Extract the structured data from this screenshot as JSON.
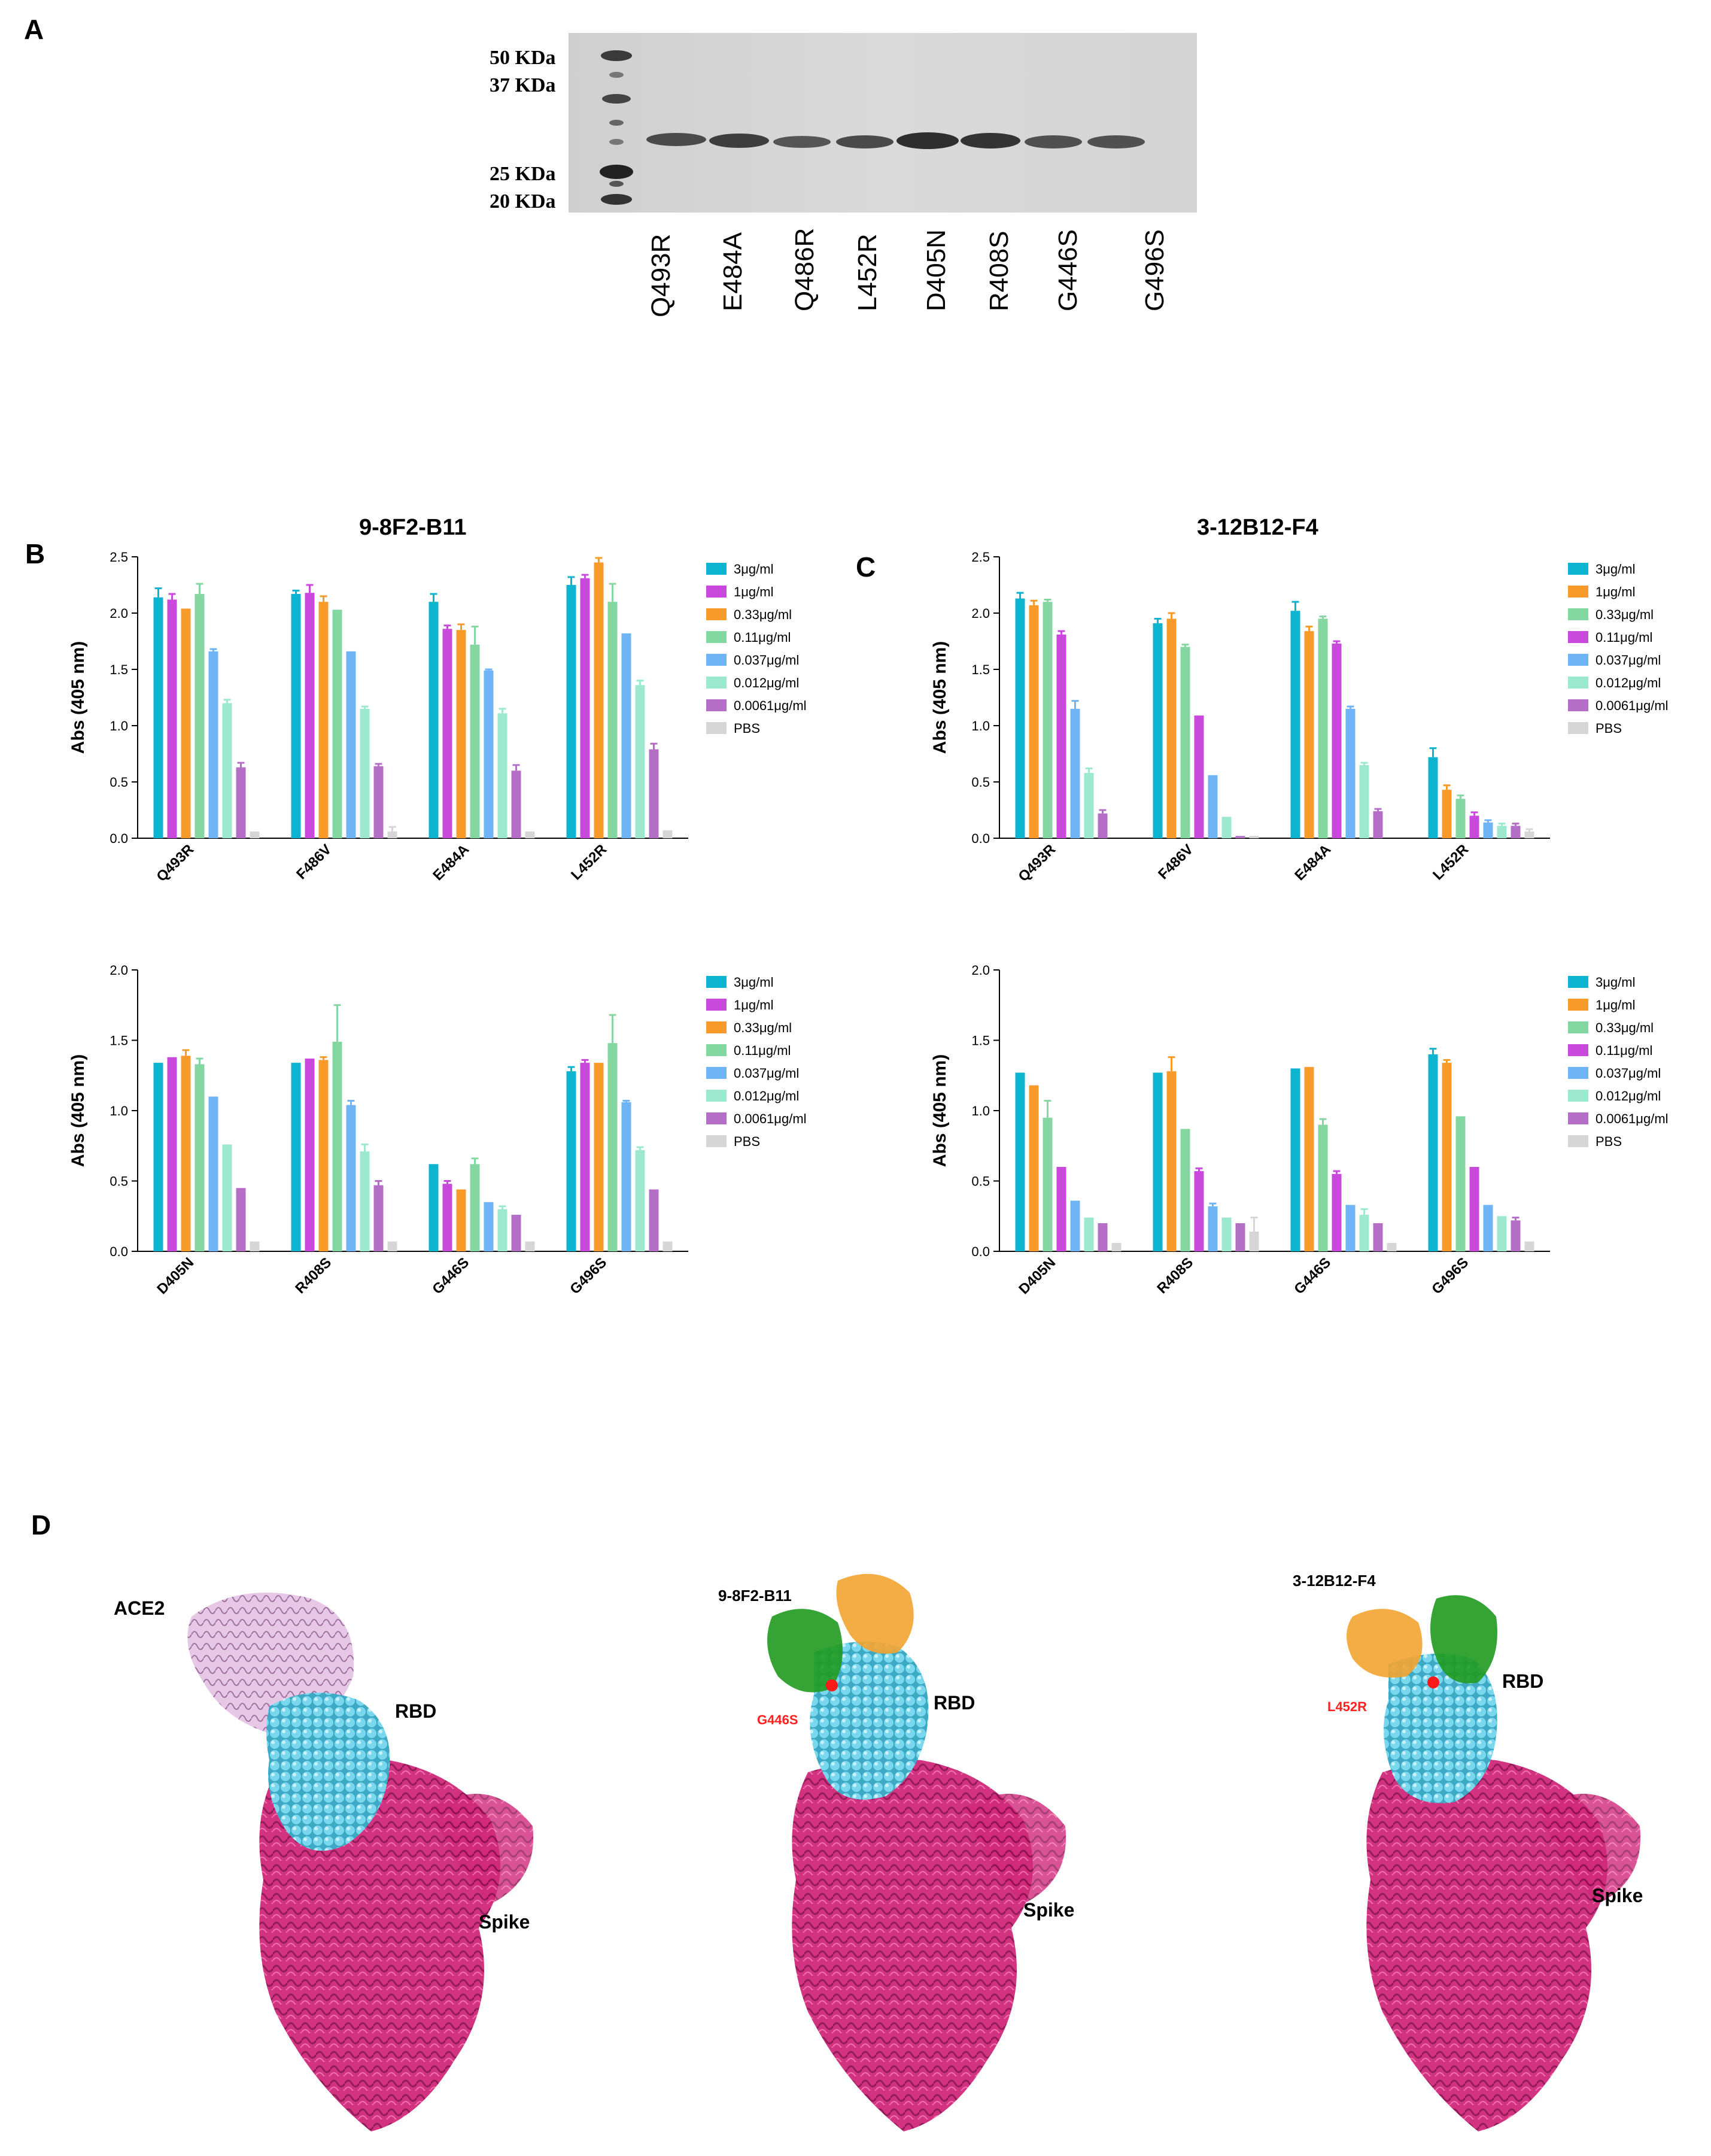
{
  "panels": {
    "A": "A",
    "B": "B",
    "C": "C",
    "D": "D"
  },
  "gel": {
    "markers": [
      "50 KDa",
      "37 KDa",
      "25 KDa",
      "20 KDa"
    ],
    "lanes": [
      "Q493R",
      "E484A",
      "Q486R",
      "L452R",
      "D405N",
      "R408S",
      "G446S",
      "G496S"
    ]
  },
  "titles": {
    "b": "9-8F2-B11",
    "c": "3-12B12-F4"
  },
  "structures": {
    "ace2_label": "ACE2",
    "rbd_label": "RBD",
    "spike_label": "Spike",
    "ab1_label": "9-8F2-B11",
    "ab2_label": "3-12B12-F4",
    "mut1": "G446S",
    "mut2": "L452R"
  },
  "colors": {
    "teal": "#0db4cf",
    "orange": "#f99b2a",
    "green": "#85d7a2",
    "magenta": "#c849dc",
    "lightblue": "#6fb5f5",
    "mint": "#9ce9d0",
    "purple": "#b56ec5",
    "grey": "#d6d6d6",
    "rbd": "#6fd3ea",
    "spike": "#d0287a",
    "ace2": "#d6a6d6",
    "heavy": "#1f9a1f",
    "light": "#f3a330"
  },
  "chart_data": [
    {
      "id": "B-top",
      "type": "bar",
      "title": "9-8F2-B11",
      "ylabel": "Abs (405 nm)",
      "ylim": [
        0,
        2.5
      ],
      "yticks": [
        "0.0",
        "0.5",
        "1.0",
        "1.5",
        "2.0",
        "2.5"
      ],
      "categories": [
        "Q493R",
        "F486V",
        "E484A",
        "L452R"
      ],
      "series": [
        {
          "name": "3μg/ml",
          "color": "teal",
          "values": [
            2.14,
            2.17,
            2.1,
            2.25
          ],
          "err": [
            0.08,
            0.03,
            0.07,
            0.07
          ]
        },
        {
          "name": "1μg/ml",
          "color": "magenta",
          "values": [
            2.12,
            2.18,
            1.86,
            2.31
          ],
          "err": [
            0.05,
            0.07,
            0.03,
            0.03
          ]
        },
        {
          "name": "0.33μg/ml",
          "color": "orange",
          "values": [
            2.04,
            2.1,
            1.85,
            2.45
          ],
          "err": [
            0.0,
            0.05,
            0.05,
            0.04
          ]
        },
        {
          "name": "0.11μg/ml",
          "color": "green",
          "values": [
            2.17,
            2.03,
            1.72,
            2.1
          ],
          "err": [
            0.09,
            0.0,
            0.16,
            0.16
          ]
        },
        {
          "name": "0.037μg/ml",
          "color": "lightblue",
          "values": [
            1.66,
            1.66,
            1.49,
            1.82
          ],
          "err": [
            0.02,
            0.0,
            0.01,
            0.0
          ]
        },
        {
          "name": "0.012μg/ml",
          "color": "mint",
          "values": [
            1.2,
            1.15,
            1.11,
            1.36
          ],
          "err": [
            0.03,
            0.02,
            0.04,
            0.04
          ]
        },
        {
          "name": "0.0061μg/ml",
          "color": "purple",
          "values": [
            0.63,
            0.64,
            0.6,
            0.79
          ],
          "err": [
            0.04,
            0.02,
            0.05,
            0.05
          ]
        },
        {
          "name": "PBS",
          "color": "grey",
          "values": [
            0.06,
            0.06,
            0.06,
            0.07
          ],
          "err": [
            0.0,
            0.04,
            0.0,
            0.0
          ]
        }
      ]
    },
    {
      "id": "B-bottom",
      "type": "bar",
      "title": "",
      "ylabel": "Abs (405 nm)",
      "ylim": [
        0,
        2.0
      ],
      "yticks": [
        "0.0",
        "0.5",
        "1.0",
        "1.5",
        "2.0"
      ],
      "categories": [
        "D405N",
        "R408S",
        "G446S",
        "G496S"
      ],
      "series": [
        {
          "name": "3μg/ml",
          "color": "teal",
          "values": [
            1.34,
            1.34,
            0.62,
            1.28
          ],
          "err": [
            0.0,
            0.0,
            0.0,
            0.03
          ]
        },
        {
          "name": "1μg/ml",
          "color": "magenta",
          "values": [
            1.38,
            1.37,
            0.48,
            1.34
          ],
          "err": [
            0.0,
            0.0,
            0.02,
            0.02
          ]
        },
        {
          "name": "0.33μg/ml",
          "color": "orange",
          "values": [
            1.39,
            1.36,
            0.44,
            1.34
          ],
          "err": [
            0.04,
            0.02,
            0.0,
            0.0
          ]
        },
        {
          "name": "0.11μg/ml",
          "color": "green",
          "values": [
            1.33,
            1.49,
            0.62,
            1.48
          ],
          "err": [
            0.04,
            0.26,
            0.04,
            0.2
          ]
        },
        {
          "name": "0.037μg/ml",
          "color": "lightblue",
          "values": [
            1.1,
            1.04,
            0.35,
            1.06
          ],
          "err": [
            0.0,
            0.03,
            0.0,
            0.01
          ]
        },
        {
          "name": "0.012μg/ml",
          "color": "mint",
          "values": [
            0.76,
            0.71,
            0.3,
            0.72
          ],
          "err": [
            0.0,
            0.05,
            0.02,
            0.02
          ]
        },
        {
          "name": "0.0061μg/ml",
          "color": "purple",
          "values": [
            0.45,
            0.47,
            0.26,
            0.44
          ],
          "err": [
            0.0,
            0.03,
            0.0,
            0.0
          ]
        },
        {
          "name": "PBS",
          "color": "grey",
          "values": [
            0.07,
            0.07,
            0.07,
            0.07
          ],
          "err": [
            0.0,
            0.0,
            0.0,
            0.0
          ]
        }
      ]
    },
    {
      "id": "C-top",
      "type": "bar",
      "title": "3-12B12-F4",
      "ylabel": "Abs (405 nm)",
      "ylim": [
        0,
        2.5
      ],
      "yticks": [
        "0.0",
        "0.5",
        "1.0",
        "1.5",
        "2.0",
        "2.5"
      ],
      "categories": [
        "Q493R",
        "F486V",
        "E484A",
        "L452R"
      ],
      "series": [
        {
          "name": "3μg/ml",
          "color": "teal",
          "values": [
            2.13,
            1.91,
            2.02,
            0.72
          ],
          "err": [
            0.05,
            0.04,
            0.08,
            0.08
          ]
        },
        {
          "name": "1μg/ml",
          "color": "orange",
          "values": [
            2.07,
            1.95,
            1.84,
            0.43
          ],
          "err": [
            0.04,
            0.05,
            0.04,
            0.04
          ]
        },
        {
          "name": "0.33μg/ml",
          "color": "green",
          "values": [
            2.1,
            1.7,
            1.95,
            0.35
          ],
          "err": [
            0.02,
            0.02,
            0.02,
            0.03
          ]
        },
        {
          "name": "0.11μg/ml",
          "color": "magenta",
          "values": [
            1.81,
            1.09,
            1.73,
            0.2
          ],
          "err": [
            0.03,
            0.0,
            0.02,
            0.03
          ]
        },
        {
          "name": "0.037μg/ml",
          "color": "lightblue",
          "values": [
            1.15,
            0.56,
            1.15,
            0.14
          ],
          "err": [
            0.07,
            0.0,
            0.02,
            0.02
          ]
        },
        {
          "name": "0.012μg/ml",
          "color": "mint",
          "values": [
            0.58,
            0.19,
            0.65,
            0.11
          ],
          "err": [
            0.04,
            0.0,
            0.02,
            0.02
          ]
        },
        {
          "name": "0.0061μg/ml",
          "color": "purple",
          "values": [
            0.22,
            0.02,
            0.24,
            0.11
          ],
          "err": [
            0.03,
            0.0,
            0.02,
            0.02
          ]
        },
        {
          "name": "PBS",
          "color": "grey",
          "values": [
            0.0,
            0.02,
            0.0,
            0.06
          ],
          "err": [
            0.0,
            0.0,
            0.0,
            0.02
          ]
        }
      ]
    },
    {
      "id": "C-bottom",
      "type": "bar",
      "title": "",
      "ylabel": "Abs (405 nm)",
      "ylim": [
        0,
        2.0
      ],
      "yticks": [
        "0.0",
        "0.5",
        "1.0",
        "1.5",
        "2.0"
      ],
      "categories": [
        "D405N",
        "R408S",
        "G446S",
        "G496S"
      ],
      "series": [
        {
          "name": "3μg/ml",
          "color": "teal",
          "values": [
            1.27,
            1.27,
            1.3,
            1.4
          ],
          "err": [
            0.0,
            0.0,
            0.0,
            0.04
          ]
        },
        {
          "name": "1μg/ml",
          "color": "orange",
          "values": [
            1.18,
            1.28,
            1.31,
            1.34
          ],
          "err": [
            0.0,
            0.1,
            0.0,
            0.02
          ]
        },
        {
          "name": "0.33μg/ml",
          "color": "green",
          "values": [
            0.95,
            0.87,
            0.9,
            0.96
          ],
          "err": [
            0.12,
            0.0,
            0.04,
            0.0
          ]
        },
        {
          "name": "0.11μg/ml",
          "color": "magenta",
          "values": [
            0.6,
            0.57,
            0.55,
            0.6
          ],
          "err": [
            0.0,
            0.02,
            0.02,
            0.0
          ]
        },
        {
          "name": "0.037μg/ml",
          "color": "lightblue",
          "values": [
            0.36,
            0.32,
            0.33,
            0.33
          ],
          "err": [
            0.0,
            0.02,
            0.0,
            0.0
          ]
        },
        {
          "name": "0.012μg/ml",
          "color": "mint",
          "values": [
            0.24,
            0.24,
            0.26,
            0.25
          ],
          "err": [
            0.0,
            0.0,
            0.04,
            0.0
          ]
        },
        {
          "name": "0.0061μg/ml",
          "color": "purple",
          "values": [
            0.2,
            0.2,
            0.2,
            0.22
          ],
          "err": [
            0.0,
            0.0,
            0.0,
            0.02
          ]
        },
        {
          "name": "PBS",
          "color": "grey",
          "values": [
            0.06,
            0.14,
            0.06,
            0.07
          ],
          "err": [
            0.0,
            0.1,
            0.0,
            0.0
          ]
        }
      ]
    }
  ]
}
